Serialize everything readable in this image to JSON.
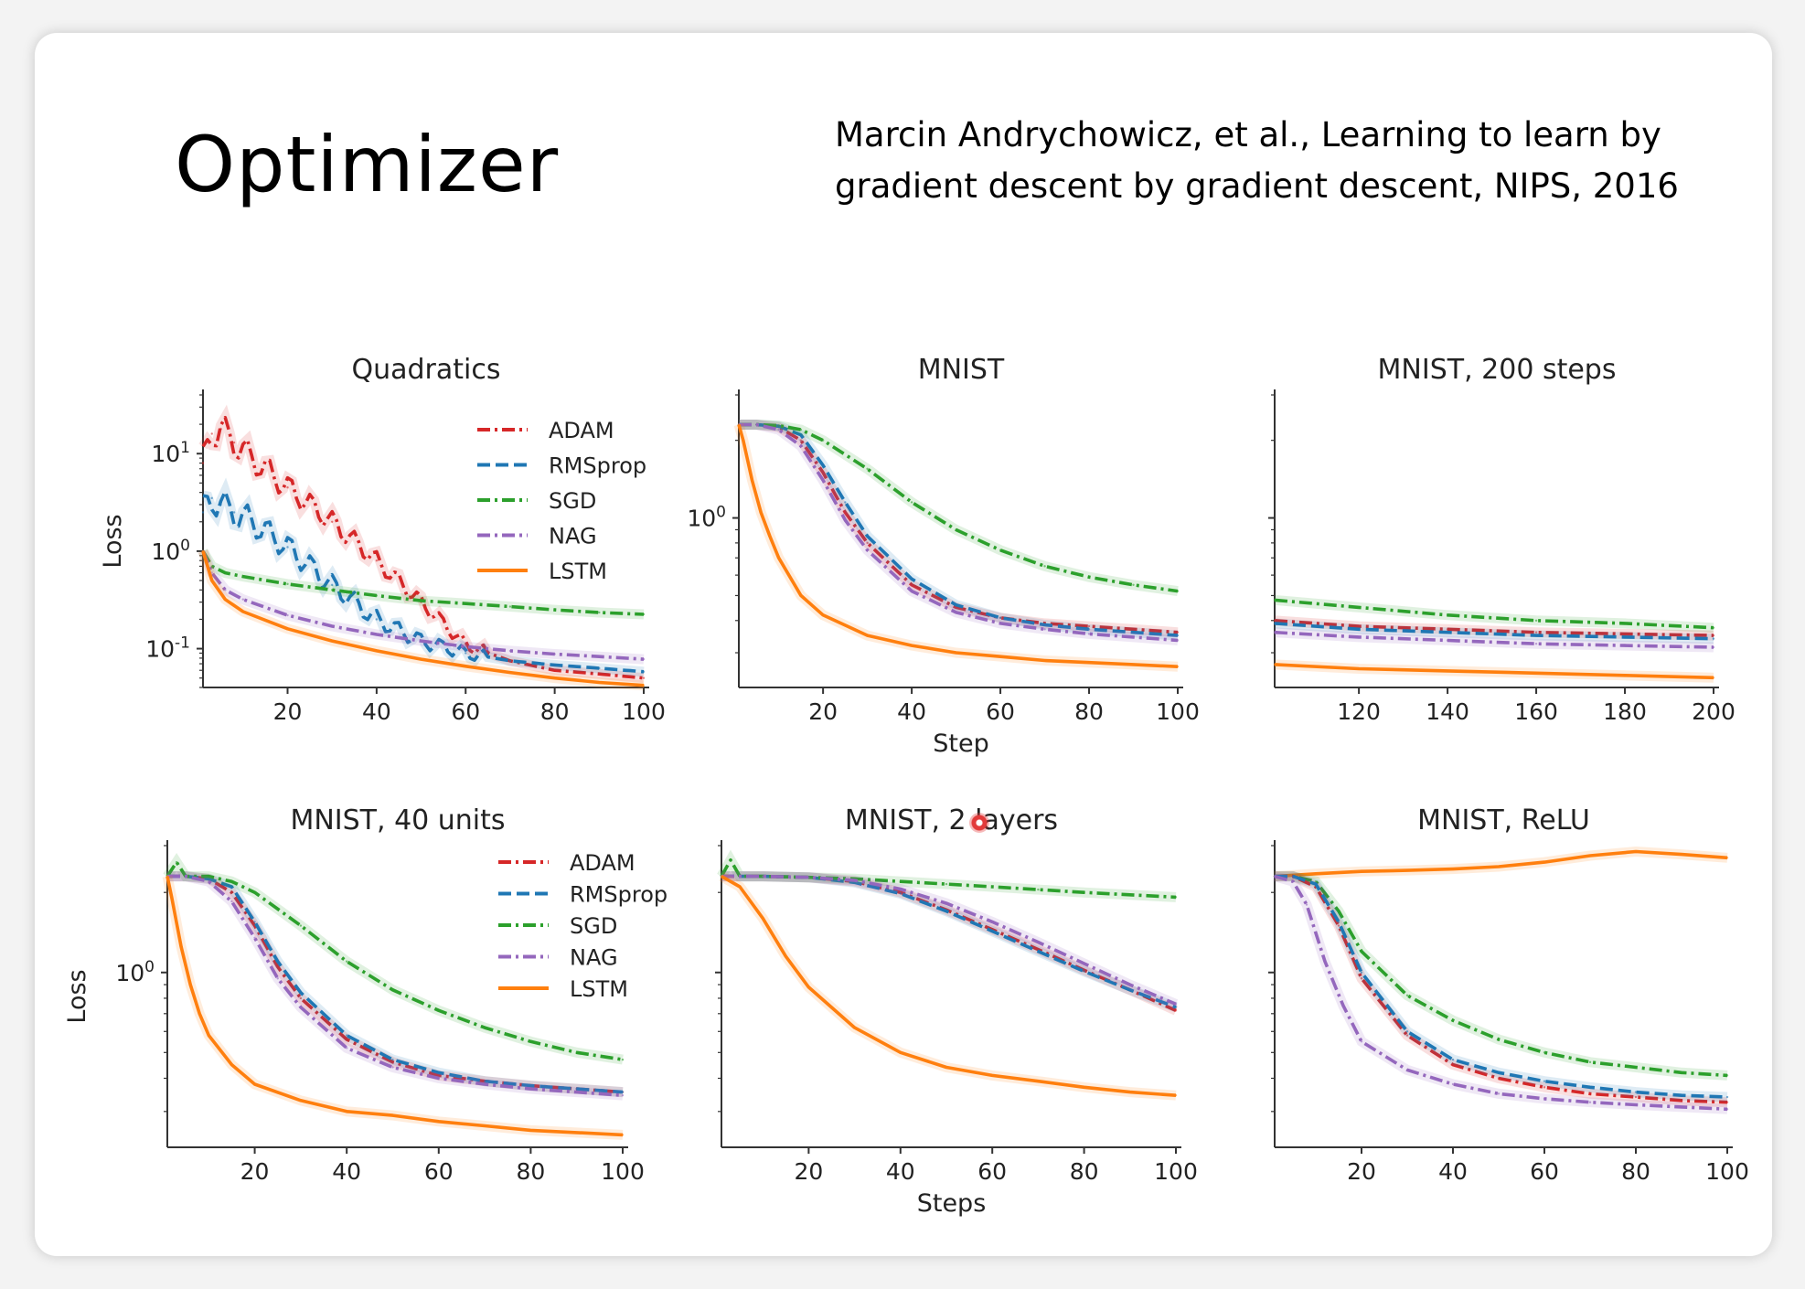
{
  "slide": {
    "title": "Optimizer",
    "citation_line1": "Marcin Andrychowicz, et al., Learning to learn by",
    "citation_line2": "gradient descent by gradient descent, NIPS, 2016"
  },
  "colors": {
    "ADAM": "#d62728",
    "RMSprop": "#1f77b4",
    "SGD": "#2ca02c",
    "NAG": "#9467bd",
    "LSTM": "#ff7f0e"
  },
  "chart_data": [
    {
      "type": "line",
      "title": "Quadratics",
      "xlabel": "",
      "ylabel": "Loss",
      "yscale": "log",
      "xlim": [
        1,
        100
      ],
      "ylim": [
        0.04,
        40
      ],
      "xticks": [
        20,
        40,
        60,
        80,
        100
      ],
      "yticks": [
        {
          "value": 10,
          "label": "10^1"
        },
        {
          "value": 1,
          "label": "10^0"
        },
        {
          "value": 0.1,
          "label": "10^-1"
        }
      ],
      "legend": "upper-right",
      "series": [
        {
          "name": "ADAM",
          "style": "dashdot",
          "oscillating": true,
          "x": [
            1,
            3,
            5,
            8,
            12,
            20,
            30,
            40,
            50,
            60,
            70,
            80,
            90,
            100
          ],
          "y": [
            8,
            16,
            18,
            13,
            9,
            4.5,
            2.0,
            0.8,
            0.3,
            0.11,
            0.075,
            0.06,
            0.055,
            0.05
          ]
        },
        {
          "name": "RMSprop",
          "style": "dashed",
          "oscillating": true,
          "x": [
            1,
            3,
            5,
            8,
            12,
            20,
            30,
            40,
            50,
            60,
            70,
            80,
            90,
            100
          ],
          "y": [
            2.5,
            3.5,
            3.0,
            2.5,
            2.0,
            1.1,
            0.45,
            0.2,
            0.12,
            0.09,
            0.075,
            0.068,
            0.063,
            0.058
          ]
        },
        {
          "name": "SGD",
          "style": "dashdot",
          "x": [
            1,
            3,
            6,
            10,
            20,
            30,
            40,
            50,
            60,
            70,
            80,
            90,
            100
          ],
          "y": [
            1.0,
            0.7,
            0.6,
            0.55,
            0.46,
            0.4,
            0.35,
            0.31,
            0.29,
            0.27,
            0.25,
            0.235,
            0.225
          ]
        },
        {
          "name": "NAG",
          "style": "dashdot",
          "x": [
            1,
            3,
            6,
            10,
            20,
            30,
            40,
            50,
            60,
            70,
            80,
            90,
            100
          ],
          "y": [
            1.0,
            0.6,
            0.4,
            0.32,
            0.22,
            0.17,
            0.14,
            0.12,
            0.105,
            0.095,
            0.088,
            0.083,
            0.078
          ]
        },
        {
          "name": "LSTM",
          "style": "solid",
          "x": [
            1,
            3,
            6,
            10,
            20,
            30,
            40,
            50,
            60,
            70,
            80,
            90,
            100
          ],
          "y": [
            1.0,
            0.5,
            0.32,
            0.24,
            0.16,
            0.12,
            0.095,
            0.078,
            0.066,
            0.057,
            0.05,
            0.045,
            0.042
          ]
        }
      ]
    },
    {
      "type": "line",
      "title": "MNIST",
      "xlabel": "Step",
      "ylabel": "",
      "yscale": "log",
      "xlim": [
        1,
        100
      ],
      "ylim": [
        0.22,
        3.0
      ],
      "xticks": [
        20,
        40,
        60,
        80,
        100
      ],
      "yticks": [
        {
          "value": 1,
          "label": "10^0"
        }
      ],
      "series": [
        {
          "name": "ADAM",
          "style": "dashdot",
          "x": [
            1,
            5,
            10,
            15,
            20,
            25,
            30,
            40,
            50,
            60,
            70,
            80,
            90,
            100
          ],
          "y": [
            2.3,
            2.3,
            2.25,
            2.0,
            1.5,
            1.05,
            0.8,
            0.55,
            0.45,
            0.41,
            0.39,
            0.38,
            0.37,
            0.36
          ]
        },
        {
          "name": "RMSprop",
          "style": "dashed",
          "x": [
            1,
            5,
            10,
            15,
            20,
            25,
            30,
            40,
            50,
            60,
            70,
            80,
            90,
            100
          ],
          "y": [
            2.3,
            2.3,
            2.27,
            2.1,
            1.6,
            1.15,
            0.85,
            0.58,
            0.46,
            0.41,
            0.385,
            0.37,
            0.36,
            0.35
          ]
        },
        {
          "name": "SGD",
          "style": "dashdot",
          "x": [
            1,
            5,
            10,
            15,
            20,
            30,
            40,
            50,
            60,
            70,
            80,
            90,
            100
          ],
          "y": [
            2.3,
            2.3,
            2.28,
            2.2,
            2.0,
            1.55,
            1.15,
            0.9,
            0.75,
            0.65,
            0.59,
            0.55,
            0.52
          ]
        },
        {
          "name": "NAG",
          "style": "dashdot",
          "x": [
            1,
            5,
            10,
            15,
            20,
            25,
            30,
            40,
            50,
            60,
            70,
            80,
            90,
            100
          ],
          "y": [
            2.3,
            2.3,
            2.2,
            1.9,
            1.4,
            0.98,
            0.75,
            0.52,
            0.43,
            0.39,
            0.37,
            0.355,
            0.345,
            0.335
          ]
        },
        {
          "name": "LSTM",
          "style": "solid",
          "x": [
            1,
            2,
            4,
            6,
            8,
            10,
            15,
            20,
            30,
            40,
            50,
            60,
            70,
            80,
            90,
            100
          ],
          "y": [
            2.3,
            2.0,
            1.4,
            1.05,
            0.85,
            0.7,
            0.5,
            0.42,
            0.35,
            0.32,
            0.3,
            0.29,
            0.28,
            0.275,
            0.27,
            0.265
          ]
        }
      ]
    },
    {
      "type": "line",
      "title": "MNIST, 200 steps",
      "xlabel": "",
      "ylabel": "",
      "yscale": "log",
      "xlim": [
        101,
        200
      ],
      "ylim": [
        0.22,
        3.0
      ],
      "xticks": [
        120,
        140,
        160,
        180,
        200
      ],
      "series": [
        {
          "name": "SGD",
          "style": "dashdot",
          "x": [
            101,
            120,
            140,
            160,
            180,
            200
          ],
          "y": [
            0.48,
            0.45,
            0.42,
            0.4,
            0.39,
            0.375
          ]
        },
        {
          "name": "ADAM",
          "style": "dashdot",
          "x": [
            101,
            120,
            140,
            160,
            180,
            200
          ],
          "y": [
            0.4,
            0.38,
            0.37,
            0.36,
            0.355,
            0.35
          ]
        },
        {
          "name": "RMSprop",
          "style": "dashed",
          "x": [
            101,
            120,
            140,
            160,
            180,
            200
          ],
          "y": [
            0.39,
            0.37,
            0.36,
            0.35,
            0.345,
            0.34
          ]
        },
        {
          "name": "NAG",
          "style": "dashdot",
          "x": [
            101,
            120,
            140,
            160,
            180,
            200
          ],
          "y": [
            0.36,
            0.345,
            0.335,
            0.325,
            0.32,
            0.315
          ]
        },
        {
          "name": "LSTM",
          "style": "solid",
          "x": [
            101,
            120,
            140,
            160,
            180,
            200
          ],
          "y": [
            0.27,
            0.26,
            0.255,
            0.25,
            0.245,
            0.24
          ]
        }
      ]
    },
    {
      "type": "line",
      "title": "MNIST, 40 units",
      "xlabel": "",
      "ylabel": "Loss",
      "yscale": "log",
      "xlim": [
        1,
        100
      ],
      "ylim": [
        0.22,
        3.0
      ],
      "xticks": [
        20,
        40,
        60,
        80,
        100
      ],
      "yticks": [
        {
          "value": 1,
          "label": "10^0"
        }
      ],
      "legend": "upper-right",
      "series": [
        {
          "name": "ADAM",
          "style": "dashdot",
          "x": [
            1,
            5,
            10,
            15,
            20,
            25,
            30,
            40,
            50,
            60,
            70,
            80,
            90,
            100
          ],
          "y": [
            2.3,
            2.3,
            2.25,
            2.0,
            1.5,
            1.05,
            0.8,
            0.56,
            0.46,
            0.41,
            0.39,
            0.375,
            0.365,
            0.355
          ]
        },
        {
          "name": "RMSprop",
          "style": "dashed",
          "x": [
            1,
            5,
            10,
            15,
            20,
            25,
            30,
            40,
            50,
            60,
            70,
            80,
            90,
            100
          ],
          "y": [
            2.3,
            2.3,
            2.25,
            2.1,
            1.55,
            1.1,
            0.84,
            0.58,
            0.47,
            0.42,
            0.39,
            0.375,
            0.365,
            0.355
          ]
        },
        {
          "name": "SGD",
          "style": "dashdot",
          "x": [
            1,
            3,
            5,
            10,
            15,
            20,
            30,
            40,
            50,
            60,
            70,
            80,
            90,
            100
          ],
          "y": [
            2.3,
            2.6,
            2.3,
            2.3,
            2.2,
            2.0,
            1.5,
            1.1,
            0.86,
            0.72,
            0.62,
            0.55,
            0.5,
            0.47
          ]
        },
        {
          "name": "NAG",
          "style": "dashdot",
          "x": [
            1,
            5,
            10,
            15,
            20,
            25,
            30,
            40,
            50,
            60,
            70,
            80,
            90,
            100
          ],
          "y": [
            2.3,
            2.3,
            2.2,
            1.85,
            1.35,
            0.95,
            0.74,
            0.52,
            0.44,
            0.4,
            0.38,
            0.365,
            0.355,
            0.345
          ]
        },
        {
          "name": "LSTM",
          "style": "solid",
          "x": [
            1,
            2,
            4,
            6,
            8,
            10,
            15,
            20,
            30,
            40,
            50,
            60,
            70,
            80,
            90,
            100
          ],
          "y": [
            2.3,
            1.9,
            1.25,
            0.9,
            0.7,
            0.58,
            0.45,
            0.38,
            0.33,
            0.3,
            0.29,
            0.275,
            0.265,
            0.255,
            0.25,
            0.245
          ]
        }
      ]
    },
    {
      "type": "line",
      "title": "MNIST, 2 layers",
      "xlabel": "Steps",
      "ylabel": "",
      "yscale": "log",
      "xlim": [
        1,
        100
      ],
      "ylim": [
        0.22,
        3.0
      ],
      "xticks": [
        20,
        40,
        60,
        80,
        100
      ],
      "series": [
        {
          "name": "ADAM",
          "style": "dashdot",
          "x": [
            1,
            10,
            20,
            30,
            40,
            50,
            60,
            70,
            80,
            90,
            100
          ],
          "y": [
            2.3,
            2.3,
            2.28,
            2.2,
            2.0,
            1.72,
            1.45,
            1.22,
            1.02,
            0.86,
            0.72
          ]
        },
        {
          "name": "RMSprop",
          "style": "dashed",
          "x": [
            1,
            10,
            20,
            30,
            40,
            50,
            60,
            70,
            80,
            90,
            100
          ],
          "y": [
            2.3,
            2.3,
            2.28,
            2.18,
            1.98,
            1.7,
            1.43,
            1.2,
            1.01,
            0.86,
            0.74
          ]
        },
        {
          "name": "SGD",
          "style": "dashdot",
          "x": [
            1,
            3,
            5,
            10,
            20,
            30,
            40,
            50,
            60,
            70,
            80,
            90,
            100
          ],
          "y": [
            2.3,
            2.65,
            2.3,
            2.3,
            2.28,
            2.25,
            2.2,
            2.15,
            2.1,
            2.05,
            2.0,
            1.96,
            1.92
          ]
        },
        {
          "name": "NAG",
          "style": "dashdot",
          "x": [
            1,
            10,
            20,
            30,
            40,
            50,
            60,
            70,
            80,
            90,
            100
          ],
          "y": [
            2.3,
            2.3,
            2.28,
            2.22,
            2.06,
            1.82,
            1.55,
            1.3,
            1.08,
            0.9,
            0.76
          ]
        },
        {
          "name": "LSTM",
          "style": "solid",
          "x": [
            1,
            5,
            10,
            15,
            20,
            30,
            40,
            50,
            60,
            70,
            80,
            90,
            100
          ],
          "y": [
            2.3,
            2.1,
            1.6,
            1.15,
            0.88,
            0.62,
            0.5,
            0.44,
            0.41,
            0.39,
            0.37,
            0.355,
            0.345
          ]
        }
      ]
    },
    {
      "type": "line",
      "title": "MNIST, ReLU",
      "xlabel": "",
      "ylabel": "",
      "yscale": "log",
      "xlim": [
        1,
        100
      ],
      "ylim": [
        0.22,
        3.0
      ],
      "xticks": [
        20,
        40,
        60,
        80,
        100
      ],
      "series": [
        {
          "name": "LSTM",
          "style": "solid",
          "x": [
            1,
            10,
            20,
            30,
            40,
            50,
            60,
            70,
            80,
            90,
            100
          ],
          "y": [
            2.3,
            2.35,
            2.4,
            2.42,
            2.45,
            2.5,
            2.6,
            2.75,
            2.85,
            2.78,
            2.7
          ]
        },
        {
          "name": "SGD",
          "style": "dashdot",
          "x": [
            1,
            5,
            10,
            15,
            20,
            30,
            40,
            50,
            60,
            70,
            80,
            90,
            100
          ],
          "y": [
            2.3,
            2.3,
            2.2,
            1.7,
            1.2,
            0.82,
            0.66,
            0.56,
            0.5,
            0.46,
            0.44,
            0.42,
            0.41
          ]
        },
        {
          "name": "ADAM",
          "style": "dashdot",
          "x": [
            1,
            5,
            10,
            15,
            20,
            30,
            40,
            50,
            60,
            70,
            80,
            90,
            100
          ],
          "y": [
            2.3,
            2.3,
            2.1,
            1.5,
            0.95,
            0.58,
            0.45,
            0.4,
            0.37,
            0.35,
            0.34,
            0.33,
            0.325
          ]
        },
        {
          "name": "RMSprop",
          "style": "dashed",
          "x": [
            1,
            5,
            10,
            15,
            20,
            30,
            40,
            50,
            60,
            70,
            80,
            90,
            100
          ],
          "y": [
            2.3,
            2.3,
            2.15,
            1.55,
            1.0,
            0.6,
            0.47,
            0.42,
            0.39,
            0.37,
            0.355,
            0.345,
            0.34
          ]
        },
        {
          "name": "NAG",
          "style": "dashdot",
          "x": [
            1,
            5,
            8,
            12,
            16,
            20,
            30,
            40,
            50,
            60,
            70,
            80,
            90,
            100
          ],
          "y": [
            2.3,
            2.2,
            1.8,
            1.1,
            0.75,
            0.55,
            0.43,
            0.38,
            0.35,
            0.335,
            0.325,
            0.318,
            0.312,
            0.306
          ]
        }
      ]
    }
  ]
}
